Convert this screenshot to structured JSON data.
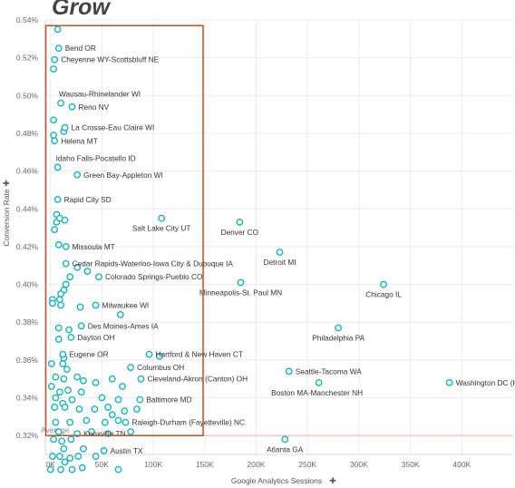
{
  "title": "Grow",
  "chart_data": {
    "type": "scatter",
    "title": "Grow",
    "xlabel": "Google Analytics Sessions",
    "ylabel": "Conversion Rate",
    "xlim": [
      -5000,
      450000
    ],
    "ylim": [
      0.0031,
      0.0054
    ],
    "x_ticks": [
      0,
      50000,
      100000,
      150000,
      200000,
      250000,
      300000,
      350000,
      400000
    ],
    "x_tick_labels": [
      "0K",
      "50K",
      "100K",
      "150K",
      "200K",
      "250K",
      "300K",
      "350K",
      "400K"
    ],
    "y_ticks": [
      0.0032,
      0.0034,
      0.0036,
      0.0038,
      0.004,
      0.0042,
      0.0044,
      0.0046,
      0.0048,
      0.005,
      0.0052,
      0.0054
    ],
    "y_tick_labels": [
      "0.32%",
      "0.34%",
      "0.36%",
      "0.38%",
      "0.40%",
      "0.42%",
      "0.44%",
      "0.46%",
      "0.48%",
      "0.50%",
      "0.52%",
      "0.54%"
    ],
    "grid": true,
    "reference_line": {
      "label": "Average",
      "y": 0.0032,
      "color": "#f4b8b0"
    },
    "highlight_box": {
      "x0": -5000,
      "x1": 148000,
      "y0": 0.0032,
      "y1": 0.00537,
      "color": "#b5532e"
    },
    "marker_color": "#1bb3b3",
    "labeled_points": [
      {
        "label": "Bend OR",
        "x": 8000,
        "y": 0.00525
      },
      {
        "label": "Cheyenne WY-Scottsbluff NE",
        "x": 4000,
        "y": 0.00519
      },
      {
        "label": "Wausau-Rhinelander WI",
        "x": 10000,
        "y": 0.00496
      },
      {
        "label": "Reno NV",
        "x": 21000,
        "y": 0.00494
      },
      {
        "label": "La Crosse-Eau Claire WI",
        "x": 14000,
        "y": 0.00483
      },
      {
        "label": "Helena MT",
        "x": 4000,
        "y": 0.00476
      },
      {
        "label": "Idaho Falls-Pocatello ID",
        "x": 7000,
        "y": 0.00462
      },
      {
        "label": "Green Bay-Appleton WI",
        "x": 26000,
        "y": 0.00458
      },
      {
        "label": "Rapid City SD",
        "x": 7000,
        "y": 0.00445
      },
      {
        "label": "Salt Lake City UT",
        "x": 108000,
        "y": 0.00435
      },
      {
        "label": "Denver CO",
        "x": 184000,
        "y": 0.00433
      },
      {
        "label": "Missoula MT",
        "x": 15000,
        "y": 0.0042
      },
      {
        "label": "Detroit MI",
        "x": 223000,
        "y": 0.00417
      },
      {
        "label": "Cedar Rapids-Waterloo-Iowa City & Dubuque IA",
        "x": 15000,
        "y": 0.00411
      },
      {
        "label": "Colorado Springs-Pueblo CO",
        "x": 47000,
        "y": 0.00404
      },
      {
        "label": "Minneapolis-St. Paul MN",
        "x": 185000,
        "y": 0.00401
      },
      {
        "label": "Chicago IL",
        "x": 324000,
        "y": 0.004
      },
      {
        "label": "Milwaukee WI",
        "x": 44000,
        "y": 0.00389
      },
      {
        "label": "Des Moines-Ames IA",
        "x": 30000,
        "y": 0.00378
      },
      {
        "label": "Dayton OH",
        "x": 20000,
        "y": 0.00372
      },
      {
        "label": "Philadelphia PA",
        "x": 280000,
        "y": 0.00377
      },
      {
        "label": "Hartford & New Haven CT",
        "x": 96000,
        "y": 0.00363
      },
      {
        "label": "Eugene OR",
        "x": 12000,
        "y": 0.00363
      },
      {
        "label": "Columbus OH",
        "x": 78000,
        "y": 0.00356
      },
      {
        "label": "Seattle-Tacoma WA",
        "x": 232000,
        "y": 0.00354
      },
      {
        "label": "Cleveland-Akron (Canton) OH",
        "x": 88000,
        "y": 0.0035
      },
      {
        "label": "Washington DC (Hagerstown MD)",
        "x": 388000,
        "y": 0.00348
      },
      {
        "label": "Boston MA-Manchester NH",
        "x": 261000,
        "y": 0.00348
      },
      {
        "label": "Baltimore MD",
        "x": 87000,
        "y": 0.00339
      },
      {
        "label": "Raleigh-Durham (Fayetteville) NC",
        "x": 73000,
        "y": 0.00327
      },
      {
        "label": "Knoxville TN",
        "x": 26000,
        "y": 0.00321
      },
      {
        "label": "Atlanta GA",
        "x": 228000,
        "y": 0.00318
      },
      {
        "label": "Austin TX",
        "x": 52000,
        "y": 0.00312
      }
    ],
    "unlabeled_points": [
      {
        "x": 7000,
        "y": 0.00535
      },
      {
        "x": 3000,
        "y": 0.00514
      },
      {
        "x": 3000,
        "y": 0.00487
      },
      {
        "x": 13000,
        "y": 0.00481
      },
      {
        "x": 3000,
        "y": 0.00479
      },
      {
        "x": 6000,
        "y": 0.00437
      },
      {
        "x": 6000,
        "y": 0.00433
      },
      {
        "x": 9000,
        "y": 0.00435
      },
      {
        "x": 14000,
        "y": 0.00434
      },
      {
        "x": 4000,
        "y": 0.00429
      },
      {
        "x": 8000,
        "y": 0.00421
      },
      {
        "x": 26000,
        "y": 0.00409
      },
      {
        "x": 19000,
        "y": 0.00404
      },
      {
        "x": 36000,
        "y": 0.00407
      },
      {
        "x": 15000,
        "y": 0.004
      },
      {
        "x": 13000,
        "y": 0.00397
      },
      {
        "x": 10000,
        "y": 0.00395
      },
      {
        "x": 9000,
        "y": 0.00392
      },
      {
        "x": 2000,
        "y": 0.00392
      },
      {
        "x": 2000,
        "y": 0.0039
      },
      {
        "x": 10000,
        "y": 0.00389
      },
      {
        "x": 29000,
        "y": 0.00388
      },
      {
        "x": 68000,
        "y": 0.00384
      },
      {
        "x": 8000,
        "y": 0.00377
      },
      {
        "x": 18000,
        "y": 0.00376
      },
      {
        "x": 8000,
        "y": 0.00371
      },
      {
        "x": 106000,
        "y": 0.00362
      },
      {
        "x": 13000,
        "y": 0.00361
      },
      {
        "x": 12000,
        "y": 0.00358
      },
      {
        "x": 1000,
        "y": 0.00358
      },
      {
        "x": 16000,
        "y": 0.00355
      },
      {
        "x": 5000,
        "y": 0.00351
      },
      {
        "x": 13000,
        "y": 0.0035
      },
      {
        "x": 26000,
        "y": 0.00351
      },
      {
        "x": 32000,
        "y": 0.00349
      },
      {
        "x": 60000,
        "y": 0.0035
      },
      {
        "x": 44000,
        "y": 0.00348
      },
      {
        "x": 70000,
        "y": 0.00346
      },
      {
        "x": 1000,
        "y": 0.00346
      },
      {
        "x": 9000,
        "y": 0.00343
      },
      {
        "x": 17000,
        "y": 0.00344
      },
      {
        "x": 30000,
        "y": 0.00343
      },
      {
        "x": 5000,
        "y": 0.0034
      },
      {
        "x": 21000,
        "y": 0.00339
      },
      {
        "x": 50000,
        "y": 0.0034
      },
      {
        "x": 12000,
        "y": 0.00337
      },
      {
        "x": 66000,
        "y": 0.00339
      },
      {
        "x": 4000,
        "y": 0.00335
      },
      {
        "x": 14000,
        "y": 0.00335
      },
      {
        "x": 28000,
        "y": 0.00334
      },
      {
        "x": 43000,
        "y": 0.00334
      },
      {
        "x": 56000,
        "y": 0.00335
      },
      {
        "x": 60000,
        "y": 0.00331
      },
      {
        "x": 72000,
        "y": 0.00333
      },
      {
        "x": 84000,
        "y": 0.00334
      },
      {
        "x": 5000,
        "y": 0.00327
      },
      {
        "x": 19000,
        "y": 0.00327
      },
      {
        "x": 35000,
        "y": 0.00328
      },
      {
        "x": 53000,
        "y": 0.00327
      },
      {
        "x": 66000,
        "y": 0.00328
      },
      {
        "x": 8000,
        "y": 0.00322
      },
      {
        "x": 40000,
        "y": 0.00322
      },
      {
        "x": 56000,
        "y": 0.00321
      },
      {
        "x": 78000,
        "y": 0.00322
      },
      {
        "x": 3000,
        "y": 0.00318
      },
      {
        "x": 11000,
        "y": 0.00317
      },
      {
        "x": 20000,
        "y": 0.00318
      },
      {
        "x": 13000,
        "y": 0.00313
      },
      {
        "x": 32000,
        "y": 0.00313
      },
      {
        "x": 2000,
        "y": 0.00309
      },
      {
        "x": 9000,
        "y": 0.00309
      },
      {
        "x": 19000,
        "y": 0.00308
      },
      {
        "x": 27000,
        "y": 0.00309
      },
      {
        "x": 44000,
        "y": 0.00309
      },
      {
        "x": 14000,
        "y": 0.00306
      },
      {
        "x": 0,
        "y": 0.00302
      },
      {
        "x": 10000,
        "y": 0.00302
      },
      {
        "x": 21000,
        "y": 0.00302
      },
      {
        "x": 31000,
        "y": 0.00303
      },
      {
        "x": 66000,
        "y": 0.00302
      }
    ]
  }
}
